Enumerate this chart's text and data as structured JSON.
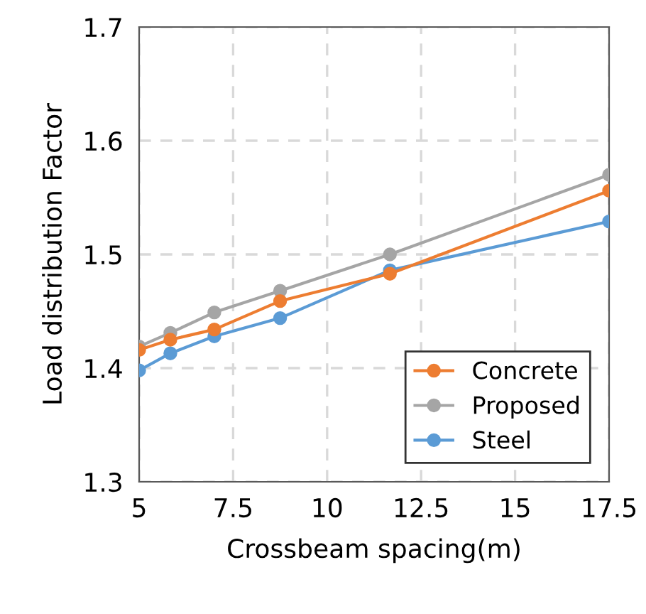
{
  "chart_data": {
    "type": "line",
    "xlabel": "Crossbeam spacing(m)",
    "ylabel": "Load distribution Factor",
    "x": [
      5,
      5.83,
      7,
      8.75,
      11.67,
      17.5
    ],
    "series": [
      {
        "name": "Concrete",
        "color": "#ed7d31",
        "values": [
          1.416,
          1.425,
          1.434,
          1.459,
          1.483,
          1.556
        ]
      },
      {
        "name": "Proposed",
        "color": "#a5a5a5",
        "values": [
          1.419,
          1.431,
          1.449,
          1.468,
          1.5,
          1.57
        ]
      },
      {
        "name": "Steel",
        "color": "#5b9bd5",
        "values": [
          1.398,
          1.413,
          1.428,
          1.444,
          1.486,
          1.529
        ]
      }
    ],
    "xlim": [
      5,
      17.5
    ],
    "xticks": [
      5,
      7.5,
      10,
      12.5,
      15,
      17.5
    ],
    "ylim": [
      1.3,
      1.7
    ],
    "yticks": [
      {
        "value": 1.3,
        "label": "1.3"
      },
      {
        "value": 1.4,
        "label": "1.4"
      },
      {
        "value": 1.5,
        "label": "1.5"
      },
      {
        "value": 1.6,
        "label": "1.6"
      },
      {
        "value": 1.7,
        "label": "1.7"
      }
    ],
    "grid": true,
    "legend": "bottom right",
    "marker": "circle",
    "line_style": "solid"
  }
}
